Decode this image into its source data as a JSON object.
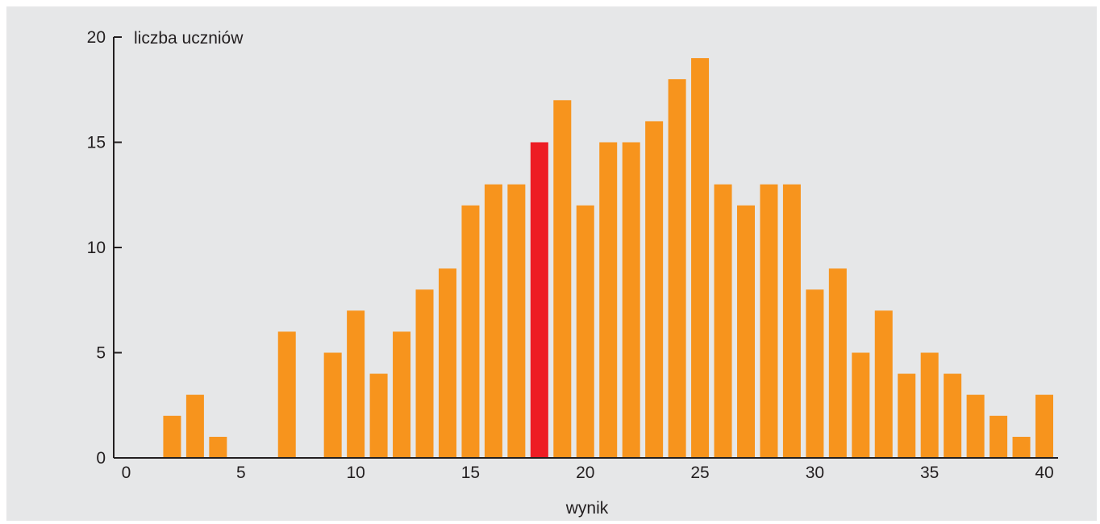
{
  "chart_data": {
    "type": "bar",
    "ylabel": "liczba uczniów",
    "xlabel": "wynik",
    "xlim": [
      0,
      40
    ],
    "ylim": [
      0,
      20
    ],
    "x_ticks": [
      "0",
      "5",
      "10",
      "15",
      "20",
      "25",
      "30",
      "35",
      "40"
    ],
    "y_ticks": [
      "0",
      "5",
      "10",
      "15",
      "20"
    ],
    "grid": false,
    "colors": {
      "background": "#e6e7e8",
      "bar": "#f7941d",
      "highlight": "#ed1c24",
      "axis": "#231f20"
    },
    "highlight_x": 18,
    "x": [
      0,
      1,
      2,
      3,
      4,
      5,
      6,
      7,
      8,
      9,
      10,
      11,
      12,
      13,
      14,
      15,
      16,
      17,
      18,
      19,
      20,
      21,
      22,
      23,
      24,
      25,
      26,
      27,
      28,
      29,
      30,
      31,
      32,
      33,
      34,
      35,
      36,
      37,
      38,
      39,
      40
    ],
    "values": [
      0,
      0,
      2,
      3,
      1,
      0,
      0,
      6,
      0,
      5,
      7,
      4,
      6,
      8,
      9,
      12,
      13,
      13,
      15,
      17,
      12,
      15,
      15,
      16,
      18,
      19,
      13,
      12,
      13,
      13,
      8,
      9,
      5,
      7,
      4,
      5,
      4,
      3,
      2,
      1,
      3
    ]
  }
}
